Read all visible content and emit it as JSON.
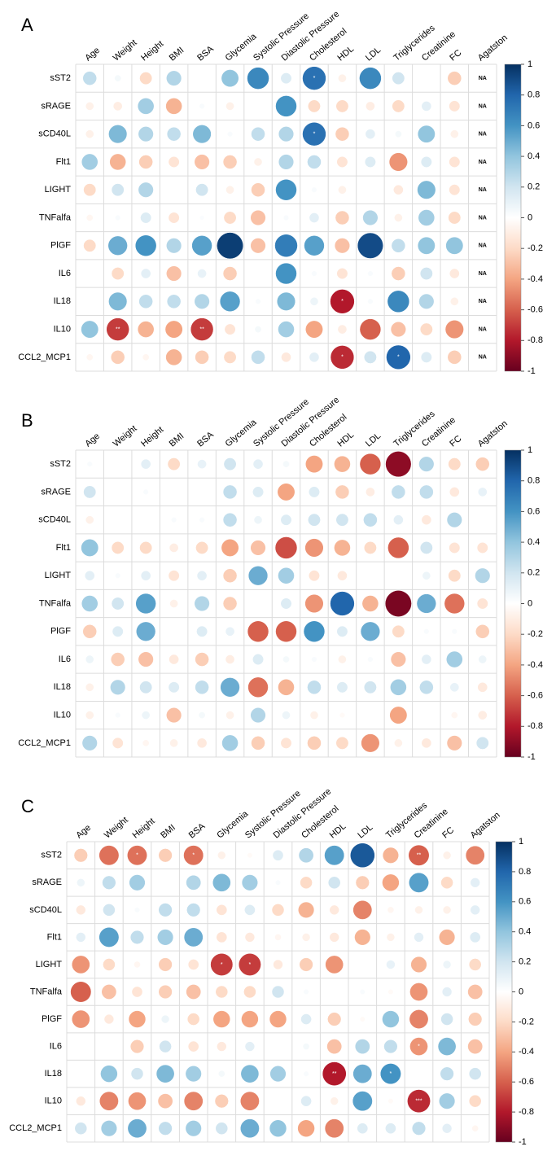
{
  "chart_data": [
    {
      "type": "corrplot",
      "panel_label": "A",
      "rows": [
        "sST2",
        "sRAGE",
        "sCD40L",
        "Flt1",
        "LIGHT",
        "TNFalfa",
        "PlGF",
        "IL6",
        "IL18",
        "IL10",
        "CCL2_MCP1"
      ],
      "columns": [
        "Age",
        "Weight",
        "Height",
        "BMI",
        "BSA",
        "Glycemia",
        "Systolic Pressure",
        "Diastolic Pressure",
        "Cholesterol",
        "HDL",
        "LDL",
        "Triglycerides",
        "Creatinine",
        "FC",
        "Agatston"
      ],
      "values": [
        [
          0.25,
          0.05,
          -0.2,
          0.3,
          0,
          0.4,
          0.65,
          0.15,
          0.75,
          -0.08,
          0.65,
          0.2,
          0,
          -0.25,
          null
        ],
        [
          -0.08,
          -0.1,
          0.35,
          -0.35,
          0.03,
          -0.08,
          0,
          0.6,
          -0.2,
          -0.2,
          -0.1,
          -0.2,
          0.12,
          -0.15,
          null
        ],
        [
          -0.08,
          0.45,
          0.3,
          0.25,
          0.45,
          0.03,
          0.25,
          0.3,
          0.75,
          -0.25,
          0.12,
          0.05,
          0.4,
          -0.08,
          null
        ],
        [
          0.35,
          -0.35,
          -0.25,
          -0.15,
          -0.3,
          -0.25,
          -0.08,
          0.3,
          0.25,
          -0.15,
          0.15,
          -0.45,
          0.15,
          -0.15,
          null
        ],
        [
          -0.2,
          0.2,
          0.3,
          0,
          0.2,
          -0.08,
          -0.25,
          0.6,
          0.03,
          -0.08,
          0,
          -0.12,
          0.45,
          -0.15,
          null
        ],
        [
          -0.05,
          0.03,
          0.15,
          -0.15,
          0.02,
          -0.2,
          -0.3,
          0.03,
          0.12,
          -0.25,
          0.3,
          -0.08,
          0.35,
          -0.2,
          null
        ],
        [
          -0.2,
          0.5,
          0.6,
          0.3,
          0.55,
          0.95,
          -0.3,
          0.7,
          0.55,
          -0.3,
          0.9,
          0.25,
          0.4,
          0.4,
          null
        ],
        [
          0,
          -0.2,
          0.12,
          -0.3,
          0.1,
          -0.25,
          0,
          0.6,
          0.03,
          -0.15,
          0.03,
          -0.25,
          0.2,
          -0.12,
          null
        ],
        [
          0,
          0.45,
          0.25,
          0.25,
          0.3,
          0.55,
          0.03,
          0.45,
          0.08,
          -0.8,
          0.03,
          0.65,
          0.3,
          -0.08,
          null
        ],
        [
          0.4,
          -0.7,
          -0.35,
          -0.4,
          -0.7,
          -0.15,
          0.05,
          0.35,
          -0.4,
          -0.1,
          -0.6,
          -0.3,
          -0.2,
          -0.45,
          null
        ],
        [
          -0.05,
          -0.25,
          -0.05,
          -0.35,
          -0.25,
          -0.2,
          0.25,
          -0.12,
          0.12,
          -0.75,
          0.2,
          0.8,
          0.15,
          -0.25,
          null
        ]
      ],
      "cell_labels": [
        [
          null,
          null,
          null,
          null,
          null,
          null,
          null,
          null,
          "*",
          null,
          null,
          null,
          null,
          null,
          "NA"
        ],
        [
          null,
          null,
          null,
          null,
          null,
          null,
          null,
          null,
          null,
          null,
          null,
          null,
          null,
          null,
          "NA"
        ],
        [
          null,
          null,
          null,
          null,
          null,
          null,
          null,
          null,
          "*",
          null,
          null,
          null,
          null,
          null,
          "NA"
        ],
        [
          null,
          null,
          null,
          null,
          null,
          null,
          null,
          null,
          null,
          null,
          null,
          null,
          null,
          null,
          "NA"
        ],
        [
          null,
          null,
          null,
          null,
          null,
          null,
          null,
          null,
          null,
          null,
          null,
          null,
          null,
          null,
          "NA"
        ],
        [
          null,
          null,
          null,
          null,
          null,
          null,
          null,
          null,
          null,
          null,
          null,
          null,
          null,
          null,
          "NA"
        ],
        [
          null,
          null,
          null,
          null,
          null,
          null,
          null,
          null,
          null,
          null,
          null,
          null,
          null,
          null,
          "NA"
        ],
        [
          null,
          null,
          null,
          null,
          null,
          null,
          null,
          null,
          null,
          null,
          null,
          null,
          null,
          null,
          "NA"
        ],
        [
          null,
          null,
          null,
          null,
          null,
          null,
          null,
          null,
          null,
          "*",
          null,
          null,
          null,
          null,
          "NA"
        ],
        [
          null,
          "**",
          null,
          null,
          "**",
          null,
          null,
          null,
          null,
          null,
          null,
          null,
          null,
          null,
          "NA"
        ],
        [
          null,
          null,
          null,
          null,
          null,
          null,
          null,
          null,
          null,
          "*",
          null,
          "*",
          null,
          null,
          "NA"
        ]
      ],
      "clim": [
        -1,
        1
      ],
      "cticks": [
        1,
        0.8,
        0.6,
        0.4,
        0.2,
        0,
        -0.2,
        -0.4,
        -0.6,
        -0.8,
        -1
      ],
      "colors": [
        "#67001F",
        "#B2182B",
        "#D6604D",
        "#F4A582",
        "#FDDBC7",
        "#FFFFFF",
        "#D1E5F0",
        "#92C5DE",
        "#4393C3",
        "#2166AC",
        "#053061"
      ]
    },
    {
      "type": "corrplot",
      "panel_label": "B",
      "rows": [
        "sST2",
        "sRAGE",
        "sCD40L",
        "Flt1",
        "LIGHT",
        "TNFalfa",
        "PlGF",
        "IL6",
        "IL18",
        "IL10",
        "CCL2_MCP1"
      ],
      "columns": [
        "Age",
        "Weight",
        "Height",
        "BMI",
        "BSA",
        "Glycemia",
        "Systolic Pressure",
        "Diastolic Pressure",
        "Cholesterol",
        "HDL",
        "LDL",
        "Triglycerides",
        "Creatinine",
        "FC",
        "Agatston"
      ],
      "values": [
        [
          0.03,
          0,
          0.12,
          -0.2,
          0.1,
          0.2,
          0.12,
          0.05,
          -0.4,
          -0.35,
          -0.6,
          -0.9,
          0.3,
          -0.2,
          -0.25
        ],
        [
          0.2,
          0,
          0.03,
          0,
          0,
          0.25,
          0.15,
          -0.4,
          0.15,
          -0.25,
          -0.1,
          0.25,
          0.25,
          -0.12,
          0.1
        ],
        [
          -0.08,
          0,
          0,
          0.03,
          0.03,
          0.25,
          0.08,
          0.15,
          0.2,
          0.2,
          0.25,
          0.12,
          -0.12,
          0.3,
          0
        ],
        [
          0.4,
          -0.2,
          -0.2,
          -0.1,
          -0.2,
          -0.4,
          -0.3,
          -0.65,
          -0.45,
          -0.35,
          -0.2,
          -0.6,
          0.2,
          -0.15,
          -0.15
        ],
        [
          0.12,
          0.03,
          0.12,
          -0.15,
          0.12,
          -0.25,
          0.5,
          0.35,
          -0.15,
          -0.12,
          0,
          0,
          0.08,
          -0.2,
          0.3
        ],
        [
          0.35,
          0.2,
          0.55,
          -0.08,
          0.3,
          -0.25,
          0,
          0.15,
          -0.45,
          0.8,
          -0.35,
          -0.95,
          0.5,
          -0.55,
          -0.15
        ],
        [
          -0.25,
          0.15,
          0.5,
          0,
          0.15,
          0.1,
          -0.6,
          -0.6,
          0.6,
          0.15,
          0.5,
          -0.2,
          0.03,
          0.03,
          -0.25
        ],
        [
          0.08,
          -0.25,
          -0.3,
          -0.12,
          -0.25,
          -0.1,
          0.15,
          0.05,
          0.03,
          -0.08,
          0.03,
          -0.3,
          0.12,
          0.35,
          0.08
        ],
        [
          -0.08,
          0.3,
          0.2,
          0.15,
          0.25,
          0.5,
          -0.55,
          -0.35,
          0.25,
          0.15,
          0.2,
          0.35,
          0.25,
          0.1,
          -0.12
        ],
        [
          -0.08,
          0.03,
          0.08,
          -0.3,
          0.05,
          -0.08,
          0.3,
          0.08,
          -0.08,
          -0.03,
          0,
          -0.4,
          0,
          -0.05,
          -0.1
        ],
        [
          0.3,
          -0.15,
          -0.05,
          -0.08,
          -0.12,
          0.35,
          -0.25,
          -0.15,
          -0.25,
          -0.2,
          -0.45,
          -0.08,
          -0.12,
          -0.3,
          0.2
        ]
      ],
      "clim": [
        -1,
        1
      ],
      "cticks": [
        1,
        0.8,
        0.6,
        0.4,
        0.2,
        0,
        -0.2,
        -0.4,
        -0.6,
        -0.8,
        -1
      ],
      "colors": [
        "#67001F",
        "#B2182B",
        "#D6604D",
        "#F4A582",
        "#FDDBC7",
        "#FFFFFF",
        "#D1E5F0",
        "#92C5DE",
        "#4393C3",
        "#2166AC",
        "#053061"
      ]
    },
    {
      "type": "corrplot",
      "panel_label": "C",
      "rows": [
        "sST2",
        "sRAGE",
        "sCD40L",
        "Flt1",
        "LIGHT",
        "TNFalfa",
        "PlGF",
        "IL6",
        "IL18",
        "IL10",
        "CCL2_MCP1"
      ],
      "columns": [
        "Age",
        "Weight",
        "Height",
        "BMI",
        "BSA",
        "Glycemia",
        "Systolic Pressure",
        "Diastolic Pressure",
        "Cholesterol",
        "HDL",
        "LDL",
        "Triglycerides",
        "Creatinine",
        "FC",
        "Agatston"
      ],
      "values": [
        [
          -0.25,
          -0.55,
          -0.55,
          -0.25,
          -0.55,
          -0.08,
          -0.03,
          0.15,
          0.3,
          0.55,
          0.85,
          -0.35,
          -0.6,
          -0.08,
          -0.5
        ],
        [
          0.08,
          0.25,
          0.35,
          0,
          0.3,
          0.45,
          0.35,
          0.03,
          -0.2,
          0.2,
          -0.25,
          -0.4,
          0.55,
          -0.2,
          0.12
        ],
        [
          -0.12,
          0.2,
          0.03,
          0.25,
          0.25,
          -0.15,
          0.15,
          -0.2,
          -0.35,
          -0.12,
          -0.5,
          -0.05,
          -0.08,
          -0.08,
          0.12
        ],
        [
          0.12,
          0.55,
          0.25,
          0.35,
          0.5,
          -0.15,
          -0.12,
          -0.05,
          -0.08,
          -0.12,
          -0.35,
          -0.08,
          0.12,
          -0.35,
          0.15
        ],
        [
          -0.45,
          -0.2,
          -0.05,
          -0.25,
          -0.15,
          -0.7,
          -0.7,
          -0.12,
          -0.25,
          -0.45,
          0,
          0.1,
          -0.35,
          0.08,
          -0.2
        ],
        [
          -0.6,
          -0.3,
          -0.15,
          -0.25,
          -0.3,
          -0.2,
          -0.2,
          0.2,
          0.03,
          0,
          0.03,
          -0.03,
          -0.45,
          0.12,
          -0.3
        ],
        [
          -0.45,
          -0.12,
          -0.4,
          0.08,
          -0.2,
          -0.4,
          -0.4,
          -0.4,
          0.15,
          -0.25,
          -0.03,
          0.4,
          -0.5,
          0.2,
          -0.25
        ],
        [
          0,
          0,
          -0.25,
          0.2,
          -0.15,
          -0.12,
          0.12,
          0,
          0.05,
          -0.3,
          0.3,
          0.25,
          -0.45,
          0.45,
          -0.3
        ],
        [
          0,
          0.4,
          0.2,
          0.45,
          0.35,
          0.05,
          0.45,
          0.35,
          0.03,
          -0.8,
          0.5,
          0.6,
          0,
          0.25,
          0.2
        ],
        [
          -0.12,
          -0.5,
          -0.45,
          -0.3,
          -0.5,
          -0.25,
          -0.5,
          0,
          0.15,
          -0.08,
          0.55,
          -0.03,
          -0.75,
          0.35,
          -0.2
        ],
        [
          0.2,
          0.35,
          0.5,
          0.25,
          0.35,
          0.2,
          0.5,
          0.4,
          -0.4,
          -0.5,
          0.15,
          0.15,
          0.25,
          0.12,
          -0.05
        ]
      ],
      "cell_labels": [
        [
          null,
          null,
          "*",
          null,
          "*",
          null,
          null,
          null,
          null,
          null,
          null,
          null,
          "**",
          null,
          null
        ],
        [
          null,
          null,
          null,
          null,
          null,
          null,
          null,
          null,
          null,
          null,
          null,
          null,
          null,
          null,
          null
        ],
        [
          null,
          null,
          null,
          null,
          null,
          null,
          null,
          null,
          null,
          null,
          null,
          null,
          null,
          null,
          null
        ],
        [
          null,
          null,
          null,
          null,
          null,
          null,
          null,
          null,
          null,
          null,
          null,
          null,
          null,
          null,
          null
        ],
        [
          null,
          null,
          null,
          null,
          null,
          "*",
          "*",
          null,
          null,
          null,
          null,
          null,
          null,
          null,
          null
        ],
        [
          null,
          null,
          null,
          null,
          null,
          null,
          null,
          null,
          null,
          null,
          null,
          null,
          null,
          null,
          null
        ],
        [
          null,
          null,
          null,
          null,
          null,
          null,
          null,
          null,
          null,
          null,
          null,
          null,
          null,
          null,
          null
        ],
        [
          null,
          null,
          null,
          null,
          null,
          null,
          null,
          null,
          null,
          null,
          null,
          null,
          "*",
          null,
          null
        ],
        [
          null,
          null,
          null,
          null,
          null,
          null,
          null,
          null,
          null,
          "**",
          null,
          "*",
          null,
          null,
          null
        ],
        [
          null,
          null,
          null,
          null,
          null,
          null,
          null,
          null,
          null,
          null,
          null,
          null,
          "***",
          null,
          null
        ],
        [
          null,
          null,
          null,
          null,
          null,
          null,
          null,
          null,
          null,
          null,
          null,
          null,
          null,
          null,
          null
        ]
      ],
      "clim": [
        -1,
        1
      ],
      "cticks": [
        1,
        0.8,
        0.6,
        0.4,
        0.2,
        0,
        -0.2,
        -0.4,
        -0.6,
        -0.8,
        -1
      ],
      "colors": [
        "#67001F",
        "#B2182B",
        "#D6604D",
        "#F4A582",
        "#FDDBC7",
        "#FFFFFF",
        "#D1E5F0",
        "#92C5DE",
        "#4393C3",
        "#2166AC",
        "#053061"
      ]
    }
  ]
}
